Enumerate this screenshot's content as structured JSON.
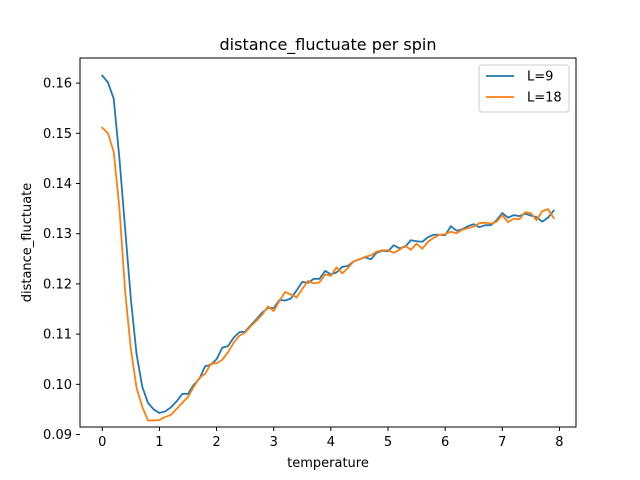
{
  "chart_data": {
    "type": "line",
    "title": "distance_fluctuate per spin",
    "xlabel": "temperature",
    "ylabel": "distance_fluctuate",
    "xlim": [
      -0.39,
      8.29
    ],
    "ylim": [
      0.0915,
      0.165
    ],
    "xticks": [
      0,
      1,
      2,
      3,
      4,
      5,
      6,
      7,
      8
    ],
    "yticks": [
      0.09,
      0.1,
      0.11,
      0.12,
      0.13,
      0.14,
      0.15,
      0.16
    ],
    "ytick_labels": [
      "0.09",
      "0.10",
      "0.11",
      "0.12",
      "0.13",
      "0.14",
      "0.15",
      "0.16"
    ],
    "grid": false,
    "legend_position": "top-right",
    "x": [
      0.0,
      0.1,
      0.2,
      0.3,
      0.4,
      0.5,
      0.6,
      0.7,
      0.8,
      0.9,
      1.0,
      1.1,
      1.2,
      1.3,
      1.4,
      1.5,
      1.6,
      1.7,
      1.8,
      1.9,
      2.0,
      2.1,
      2.2,
      2.3,
      2.4,
      2.5,
      2.6,
      2.7,
      2.8,
      2.9,
      3.0,
      3.1,
      3.2,
      3.3,
      3.4,
      3.5,
      3.6,
      3.7,
      3.8,
      3.9,
      4.0,
      4.1,
      4.2,
      4.3,
      4.4,
      4.5,
      4.6,
      4.7,
      4.8,
      4.9,
      5.0,
      5.1,
      5.2,
      5.3,
      5.4,
      5.5,
      5.6,
      5.7,
      5.8,
      5.9,
      6.0,
      6.1,
      6.2,
      6.3,
      6.4,
      6.5,
      6.6,
      6.7,
      6.8,
      6.9,
      7.0,
      7.1,
      7.2,
      7.3,
      7.4,
      7.5,
      7.6,
      7.7,
      7.8,
      7.9
    ],
    "series": [
      {
        "name": "L=9",
        "color": "#1f77b4",
        "values": [
          0.1615,
          0.1601,
          0.1569,
          0.145,
          0.131,
          0.117,
          0.106,
          0.0995,
          0.0963,
          0.095,
          0.0943,
          0.0946,
          0.0954,
          0.0966,
          0.0981,
          0.0981,
          0.0999,
          0.1011,
          0.1036,
          0.1039,
          0.105,
          0.1073,
          0.1076,
          0.1093,
          0.1104,
          0.1105,
          0.1118,
          0.113,
          0.1143,
          0.1152,
          0.1152,
          0.1168,
          0.1167,
          0.1171,
          0.1187,
          0.1204,
          0.1202,
          0.121,
          0.121,
          0.1226,
          0.1219,
          0.1223,
          0.1234,
          0.1236,
          0.1245,
          0.1249,
          0.1253,
          0.1249,
          0.1262,
          0.1266,
          0.1265,
          0.1277,
          0.1271,
          0.1274,
          0.1287,
          0.1285,
          0.1284,
          0.1293,
          0.1298,
          0.1298,
          0.1297,
          0.1315,
          0.1306,
          0.1309,
          0.1315,
          0.1319,
          0.1313,
          0.1317,
          0.1317,
          0.1327,
          0.1341,
          0.1332,
          0.1337,
          0.1335,
          0.134,
          0.1336,
          0.1333,
          0.1324,
          0.1332,
          0.1346
        ]
      },
      {
        "name": "L=18",
        "color": "#ff7f0e",
        "values": [
          0.1511,
          0.15,
          0.1463,
          0.135,
          0.1185,
          0.107,
          0.0993,
          0.0955,
          0.0928,
          0.0928,
          0.0929,
          0.0935,
          0.0939,
          0.0951,
          0.0963,
          0.0975,
          0.0995,
          0.1013,
          0.1021,
          0.1041,
          0.1042,
          0.1049,
          0.1064,
          0.1083,
          0.1097,
          0.1103,
          0.1116,
          0.1127,
          0.1139,
          0.1155,
          0.1146,
          0.1166,
          0.1184,
          0.1179,
          0.1173,
          0.119,
          0.1206,
          0.1201,
          0.1203,
          0.1219,
          0.1216,
          0.1233,
          0.1221,
          0.1232,
          0.1245,
          0.1249,
          0.1254,
          0.1257,
          0.1264,
          0.1267,
          0.1267,
          0.1262,
          0.1268,
          0.1276,
          0.1268,
          0.128,
          0.127,
          0.1284,
          0.1292,
          0.1298,
          0.1299,
          0.1304,
          0.1301,
          0.1308,
          0.1311,
          0.1314,
          0.1321,
          0.1322,
          0.132,
          0.1324,
          0.1337,
          0.1323,
          0.133,
          0.1329,
          0.1343,
          0.1341,
          0.1327,
          0.1345,
          0.1349,
          0.1331
        ]
      }
    ]
  }
}
